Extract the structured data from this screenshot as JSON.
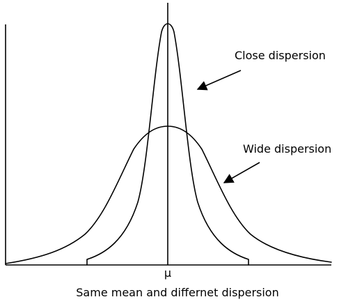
{
  "labels": {
    "close": "Close dispersion",
    "wide": "Wide dispersion",
    "mean": "μ",
    "caption": "Same mean and differnet dispersion"
  },
  "colors": {
    "line": "#000000",
    "background": "#ffffff"
  }
}
